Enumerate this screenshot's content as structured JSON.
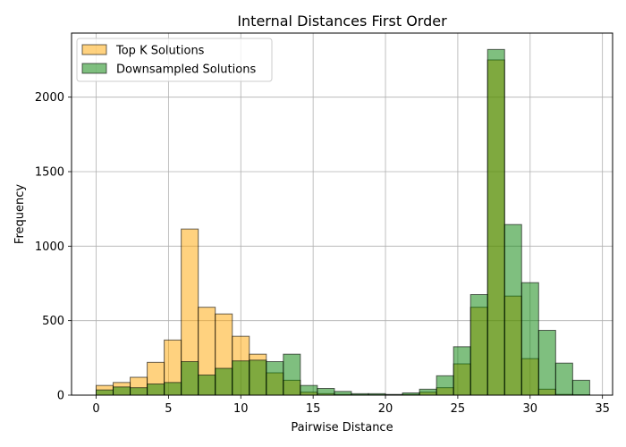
{
  "chart_data": {
    "type": "bar",
    "title": "Internal Distances First Order",
    "xlabel": "Pairwise Distance",
    "ylabel": "Frequency",
    "xlim": [
      -1.7,
      35.7
    ],
    "ylim": [
      0,
      2430
    ],
    "grid": true,
    "legend_position": "top-left",
    "bin_width": 1.1765,
    "x_ticks": [
      "0",
      "5",
      "10",
      "15",
      "20",
      "25",
      "30",
      "35"
    ],
    "y_ticks": [
      "0",
      "500",
      "1000",
      "1500",
      "2000"
    ],
    "bin_starts": [
      0,
      1.1765,
      2.3529,
      3.5294,
      4.7059,
      5.8824,
      7.0588,
      8.2353,
      9.4118,
      10.5882,
      11.7647,
      12.9412,
      14.1176,
      15.2941,
      16.4706,
      17.6471,
      18.8235,
      20.0,
      21.1765,
      22.3529,
      23.5294,
      24.7059,
      25.8824,
      27.0588,
      28.2353,
      29.4118,
      30.5882,
      31.7647,
      32.9412
    ],
    "series": [
      {
        "name": "Top K Solutions",
        "color": "#ffa500",
        "values": [
          65,
          85,
          120,
          220,
          370,
          1115,
          590,
          545,
          395,
          275,
          150,
          100,
          20,
          10,
          5,
          3,
          3,
          2,
          5,
          20,
          50,
          210,
          590,
          2250,
          665,
          245,
          40,
          5,
          3
        ]
      },
      {
        "name": "Downsampled Solutions",
        "color": "#008000",
        "values": [
          35,
          55,
          50,
          75,
          85,
          225,
          135,
          180,
          230,
          235,
          225,
          275,
          65,
          45,
          25,
          10,
          10,
          5,
          15,
          40,
          130,
          325,
          675,
          2320,
          1145,
          755,
          435,
          215,
          100
        ]
      }
    ]
  }
}
